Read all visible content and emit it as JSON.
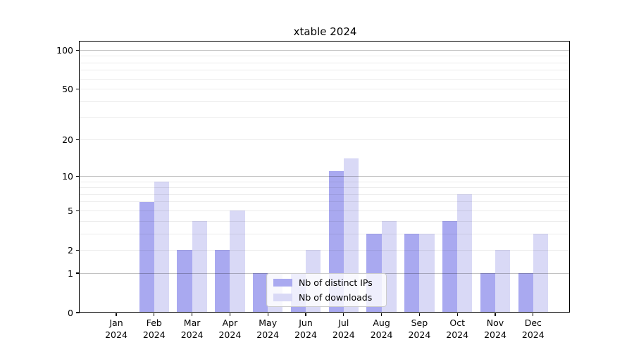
{
  "chart_data": {
    "type": "bar",
    "title": "xtable 2024",
    "scale": "log10(1+x)",
    "categories": [
      "Jan",
      "Feb",
      "Mar",
      "Apr",
      "May",
      "Jun",
      "Jul",
      "Aug",
      "Sep",
      "Oct",
      "Nov",
      "Dec"
    ],
    "year_label": "2024",
    "series": [
      {
        "name": "Nb of distinct IPs",
        "color": "#a9a9f0",
        "values": [
          0,
          6,
          2,
          2,
          1,
          1,
          11,
          3,
          3,
          4,
          1,
          1
        ]
      },
      {
        "name": "Nb of downloads",
        "color": "#d9d9f6",
        "values": [
          0,
          9,
          4,
          5,
          1,
          2,
          14,
          4,
          3,
          7,
          2,
          3
        ]
      }
    ],
    "yticks": [
      0,
      1,
      2,
      5,
      10,
      20,
      50,
      100
    ],
    "ylim": [
      0,
      117
    ],
    "grid_decade_lines": [
      1,
      10,
      100
    ],
    "grid_major_lines": [
      2,
      5,
      20,
      50
    ],
    "grid_minor_lines": [
      3,
      4,
      6,
      7,
      8,
      9,
      30,
      40,
      60,
      70,
      80,
      90
    ],
    "legend_position": "inside lower-center",
    "grid": "on",
    "frame_color": "#000000",
    "background_color": "#ffffff"
  }
}
